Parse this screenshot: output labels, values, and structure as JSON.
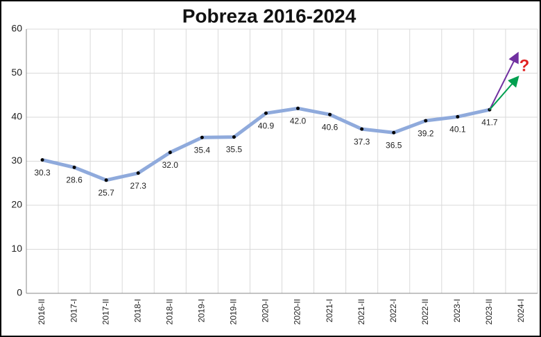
{
  "chart_data": {
    "type": "line",
    "title": "Pobreza 2016-2024",
    "categories": [
      "2016-II",
      "2017-I",
      "2017-II",
      "2018-I",
      "2018-II",
      "2019-I",
      "2019-II",
      "2020-I",
      "2020-II",
      "2021-I",
      "2021-II",
      "2022-I",
      "2022-II",
      "2023-I",
      "2023-II",
      "2024-I"
    ],
    "series": [
      {
        "color": "#8faadc",
        "values": [
          30.3,
          28.6,
          25.7,
          27.3,
          32.0,
          35.4,
          35.5,
          40.9,
          42.0,
          40.6,
          37.3,
          36.5,
          39.2,
          40.1,
          41.7,
          null
        ],
        "value_labels": [
          "30.3",
          "28.6",
          "25.7",
          "27.3",
          "32.0",
          "35.4",
          "35.5",
          "40.9",
          "42.0",
          "40.6",
          "37.3",
          "36.5",
          "39.2",
          "40.1",
          "41.7",
          null
        ]
      }
    ],
    "ylim": [
      0,
      60
    ],
    "yticks": [
      0,
      10,
      20,
      30,
      40,
      50,
      60
    ],
    "grid": true,
    "annotations": [
      "?"
    ]
  }
}
